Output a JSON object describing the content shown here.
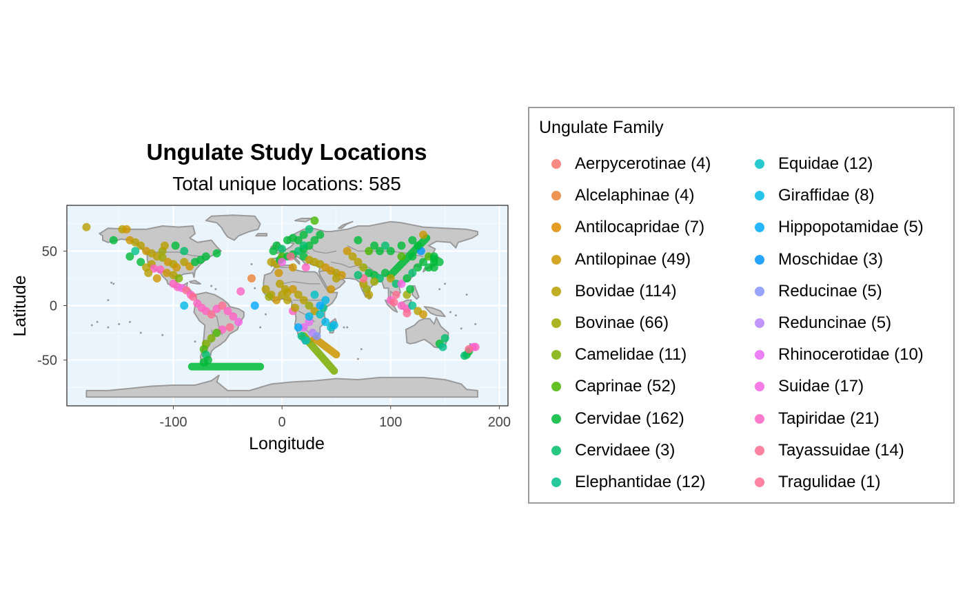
{
  "chart_data": {
    "type": "scatter",
    "title": "Ungulate Study Locations",
    "subtitle": "Total unique locations: 585",
    "xlabel": "Longitude",
    "ylabel": "Latitude",
    "xlim": [
      -198,
      208
    ],
    "ylim": [
      -92,
      92
    ],
    "xticks": [
      -100,
      0,
      100,
      200
    ],
    "xtick_labels": [
      "-100",
      "0",
      "100",
      "200"
    ],
    "yticks": [
      -50,
      0,
      50
    ],
    "ytick_labels": [
      "-50",
      "0",
      "50"
    ],
    "grid": true,
    "background_color": "#eaf4fc",
    "land_color": "#c8c8c8",
    "border_color": "#9a9a9a",
    "legend_title": "Ungulate Family",
    "legend_placement": "right",
    "families": [
      {
        "name": "Aerpycerotinae (4)",
        "color": "#F8766D"
      },
      {
        "name": "Alcelaphinae (4)",
        "color": "#EB8335"
      },
      {
        "name": "Antilocapridae (7)",
        "color": "#DE8C00"
      },
      {
        "name": "Antilopinae (49)",
        "color": "#CD9600"
      },
      {
        "name": "Bovidae (114)",
        "color": "#B79F00"
      },
      {
        "name": "Bovinae (66)",
        "color": "#9DA700"
      },
      {
        "name": "Camelidae (11)",
        "color": "#7CAE00"
      },
      {
        "name": "Caprinae (52)",
        "color": "#49B500"
      },
      {
        "name": "Cervidae (162)",
        "color": "#00BA38"
      },
      {
        "name": "Cervidaee (3)",
        "color": "#00BE6C"
      },
      {
        "name": "Elephantidae (12)",
        "color": "#00C08B"
      },
      {
        "name": "Equidae (12)",
        "color": "#00BFC4"
      },
      {
        "name": "Giraffidae (8)",
        "color": "#00B8E7"
      },
      {
        "name": "Hippopotamidae (5)",
        "color": "#00A9FF"
      },
      {
        "name": "Moschidae (3)",
        "color": "#0094FF"
      },
      {
        "name": "Reducinae (5)",
        "color": "#8494FF"
      },
      {
        "name": "Reduncinae (5)",
        "color": "#B983FF"
      },
      {
        "name": "Rhinocerotidae (10)",
        "color": "#E76BF3"
      },
      {
        "name": "Suidae (17)",
        "color": "#F564E3"
      },
      {
        "name": "Tapiridae (21)",
        "color": "#FF61C3"
      },
      {
        "name": "Tayassuidae (14)",
        "color": "#FF6C91"
      },
      {
        "name": "Tragulidae (1)",
        "color": "#FF6C91"
      }
    ],
    "points": [
      [
        -180,
        72,
        4
      ],
      [
        -147,
        70,
        4
      ],
      [
        -143,
        70,
        3
      ],
      [
        -155,
        60,
        8
      ],
      [
        -140,
        60,
        3
      ],
      [
        -135,
        58,
        4
      ],
      [
        -130,
        55,
        4
      ],
      [
        -125,
        50,
        3
      ],
      [
        -120,
        48,
        4
      ],
      [
        -115,
        45,
        4
      ],
      [
        -110,
        44,
        5
      ],
      [
        -105,
        40,
        3
      ],
      [
        -100,
        38,
        4
      ],
      [
        -97,
        35,
        3
      ],
      [
        -90,
        40,
        4
      ],
      [
        -85,
        36,
        3
      ],
      [
        -80,
        40,
        8
      ],
      [
        -75,
        42,
        8
      ],
      [
        -70,
        45,
        8
      ],
      [
        -120,
        38,
        4
      ],
      [
        -118,
        34,
        19
      ],
      [
        -112,
        33,
        19
      ],
      [
        -106,
        30,
        3
      ],
      [
        -100,
        28,
        4
      ],
      [
        -100,
        20,
        19
      ],
      [
        -96,
        17,
        19
      ],
      [
        -92,
        16,
        18
      ],
      [
        -88,
        14,
        20
      ],
      [
        -84,
        10,
        19
      ],
      [
        -82,
        8,
        20
      ],
      [
        -78,
        2,
        19
      ],
      [
        -74,
        -2,
        19
      ],
      [
        -70,
        -5,
        19
      ],
      [
        -65,
        -8,
        20
      ],
      [
        -60,
        -3,
        19
      ],
      [
        -55,
        0,
        20
      ],
      [
        -50,
        -5,
        19
      ],
      [
        -45,
        -10,
        19
      ],
      [
        -40,
        -15,
        18
      ],
      [
        -48,
        -20,
        20
      ],
      [
        -55,
        -22,
        19
      ],
      [
        -60,
        -25,
        7
      ],
      [
        -65,
        -30,
        6
      ],
      [
        -70,
        -35,
        6
      ],
      [
        -72,
        -40,
        7
      ],
      [
        -70,
        -45,
        9
      ],
      [
        -68,
        -50,
        8
      ],
      [
        -72,
        -52,
        8
      ],
      [
        -38,
        13,
        19
      ],
      [
        -28,
        25,
        1
      ],
      [
        -25,
        0,
        13
      ],
      [
        -90,
        0,
        12
      ],
      [
        -140,
        45,
        8
      ],
      [
        -135,
        50,
        10
      ],
      [
        -130,
        40,
        8
      ],
      [
        -125,
        35,
        4
      ],
      [
        -123,
        30,
        4
      ],
      [
        -115,
        25,
        3
      ],
      [
        -110,
        50,
        5
      ],
      [
        -108,
        55,
        4
      ],
      [
        -98,
        55,
        8
      ],
      [
        -90,
        50,
        9
      ],
      [
        -60,
        48,
        8
      ],
      [
        -95,
        25,
        6
      ],
      [
        -10,
        40,
        4
      ],
      [
        -5,
        38,
        4
      ],
      [
        -2,
        42,
        8
      ],
      [
        0,
        45,
        7
      ],
      [
        5,
        45,
        8
      ],
      [
        10,
        47,
        8
      ],
      [
        15,
        50,
        9
      ],
      [
        20,
        52,
        8
      ],
      [
        25,
        55,
        8
      ],
      [
        30,
        60,
        8
      ],
      [
        35,
        65,
        8
      ],
      [
        15,
        60,
        8
      ],
      [
        20,
        65,
        8
      ],
      [
        25,
        70,
        9
      ],
      [
        10,
        62,
        8
      ],
      [
        5,
        60,
        8
      ],
      [
        30,
        78,
        7
      ],
      [
        -5,
        55,
        8
      ],
      [
        0,
        52,
        9
      ],
      [
        -8,
        50,
        8
      ],
      [
        20,
        45,
        8
      ],
      [
        25,
        42,
        4
      ],
      [
        30,
        40,
        4
      ],
      [
        35,
        38,
        4
      ],
      [
        40,
        35,
        3
      ],
      [
        45,
        32,
        3
      ],
      [
        50,
        30,
        4
      ],
      [
        55,
        28,
        3
      ],
      [
        -15,
        15,
        4
      ],
      [
        -10,
        10,
        4
      ],
      [
        -5,
        5,
        3
      ],
      [
        0,
        10,
        4
      ],
      [
        5,
        12,
        4
      ],
      [
        10,
        15,
        3
      ],
      [
        15,
        10,
        4
      ],
      [
        20,
        5,
        4
      ],
      [
        25,
        0,
        5
      ],
      [
        30,
        -5,
        4
      ],
      [
        35,
        -8,
        11
      ],
      [
        38,
        -2,
        10
      ],
      [
        40,
        5,
        12
      ],
      [
        30,
        10,
        11
      ],
      [
        25,
        -15,
        17
      ],
      [
        20,
        -20,
        17
      ],
      [
        28,
        -25,
        16
      ],
      [
        32,
        -28,
        15
      ],
      [
        22,
        -32,
        11
      ],
      [
        18,
        -28,
        10
      ],
      [
        15,
        -20,
        13
      ],
      [
        25,
        -10,
        12
      ],
      [
        35,
        0,
        13
      ],
      [
        40,
        -15,
        12
      ],
      [
        45,
        -20,
        11
      ],
      [
        48,
        -18,
        12
      ],
      [
        10,
        -5,
        19
      ],
      [
        0,
        40,
        18
      ],
      [
        8,
        45,
        20
      ],
      [
        10,
        35,
        3
      ],
      [
        -3,
        30,
        3
      ],
      [
        45,
        15,
        3
      ],
      [
        50,
        25,
        4
      ],
      [
        22,
        35,
        19
      ],
      [
        -12,
        8,
        5
      ],
      [
        12,
        -2,
        4
      ],
      [
        5,
        5,
        4
      ],
      [
        3,
        15,
        4
      ],
      [
        -2,
        20,
        4
      ],
      [
        60,
        50,
        3
      ],
      [
        65,
        45,
        4
      ],
      [
        70,
        40,
        4
      ],
      [
        75,
        35,
        5
      ],
      [
        80,
        30,
        8
      ],
      [
        85,
        28,
        8
      ],
      [
        90,
        25,
        9
      ],
      [
        95,
        30,
        8
      ],
      [
        100,
        25,
        4
      ],
      [
        105,
        20,
        9
      ],
      [
        110,
        20,
        18
      ],
      [
        115,
        25,
        8
      ],
      [
        120,
        30,
        9
      ],
      [
        125,
        35,
        8
      ],
      [
        130,
        40,
        8
      ],
      [
        135,
        45,
        7
      ],
      [
        140,
        40,
        8
      ],
      [
        120,
        45,
        8
      ],
      [
        110,
        45,
        7
      ],
      [
        100,
        50,
        8
      ],
      [
        90,
        50,
        8
      ],
      [
        80,
        50,
        7
      ],
      [
        75,
        20,
        4
      ],
      [
        78,
        15,
        5
      ],
      [
        80,
        10,
        4
      ],
      [
        85,
        22,
        5
      ],
      [
        75,
        25,
        20
      ],
      [
        70,
        28,
        9
      ],
      [
        105,
        10,
        20
      ],
      [
        100,
        5,
        19
      ],
      [
        103,
        3,
        20
      ],
      [
        110,
        0,
        19
      ],
      [
        115,
        -3,
        19
      ],
      [
        120,
        0,
        10
      ],
      [
        125,
        -5,
        4
      ],
      [
        130,
        -8,
        3
      ],
      [
        140,
        45,
        8
      ],
      [
        135,
        35,
        8
      ],
      [
        115,
        10,
        5
      ],
      [
        118,
        15,
        8
      ],
      [
        128,
        50,
        14
      ],
      [
        125,
        55,
        8
      ],
      [
        120,
        60,
        8
      ],
      [
        110,
        55,
        8
      ],
      [
        95,
        55,
        9
      ],
      [
        85,
        55,
        8
      ],
      [
        70,
        60,
        8
      ],
      [
        130,
        65,
        3
      ],
      [
        140,
        35,
        8
      ],
      [
        145,
        40,
        8
      ],
      [
        140,
        43,
        8
      ],
      [
        20,
        55,
        9
      ],
      [
        115,
        -7,
        20
      ],
      [
        170,
        -45,
        8
      ],
      [
        172,
        -42,
        8
      ],
      [
        168,
        -46,
        9
      ],
      [
        176,
        -38,
        18
      ],
      [
        178,
        -38,
        19
      ],
      [
        172,
        -40,
        20
      ],
      [
        145,
        -35,
        8
      ],
      [
        150,
        -30,
        9
      ],
      [
        148,
        -38,
        10
      ]
    ],
    "transects": [
      {
        "from": [
          -83,
          -56
        ],
        "to": [
          -20,
          -56
        ],
        "family": 8
      },
      {
        "from": [
          20,
          -28
        ],
        "to": [
          48,
          -60
        ],
        "family": 6
      },
      {
        "from": [
          30,
          -30
        ],
        "to": [
          50,
          -45
        ],
        "family": 3
      },
      {
        "from": [
          100,
          28
        ],
        "to": [
          133,
          62
        ],
        "family": 8
      }
    ]
  }
}
